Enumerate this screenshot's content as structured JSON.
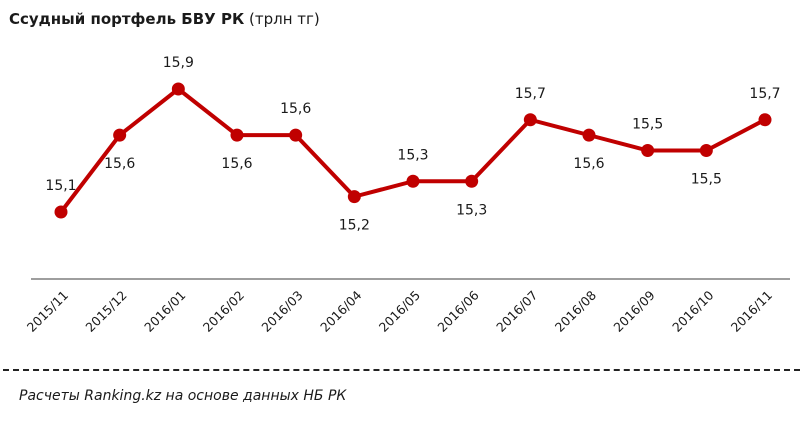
{
  "title": {
    "main": "Ссудный портфель БВУ РК",
    "unit": "(трлн тг)"
  },
  "source_note": "Расчеты Ranking.kz на основе данных НБ РК",
  "colors": {
    "line": "#C00000",
    "axis": "#7f7f7f",
    "text": "#1a1a1a"
  },
  "chart_data": {
    "type": "line",
    "title": "Ссудный портфель БВУ РК (трлн тг)",
    "xlabel": "",
    "ylabel": "трлн тг",
    "categories": [
      "2015/11",
      "2015/12",
      "2016/01",
      "2016/02",
      "2016/03",
      "2016/04",
      "2016/05",
      "2016/06",
      "2016/07",
      "2016/08",
      "2016/09",
      "2016/10",
      "2016/11"
    ],
    "series": [
      {
        "name": "Ссудный портфель БВУ РК",
        "values": [
          15.1,
          15.6,
          15.9,
          15.6,
          15.6,
          15.2,
          15.3,
          15.3,
          15.7,
          15.6,
          15.5,
          15.5,
          15.7
        ],
        "labels": [
          "15,1",
          "15,6",
          "15,9",
          "15,6",
          "15,6",
          "15,2",
          "15,3",
          "15,3",
          "15,7",
          "15,6",
          "15,5",
          "15,5",
          "15,7"
        ]
      }
    ],
    "grid": false,
    "legend": "none",
    "data_labels": true
  }
}
